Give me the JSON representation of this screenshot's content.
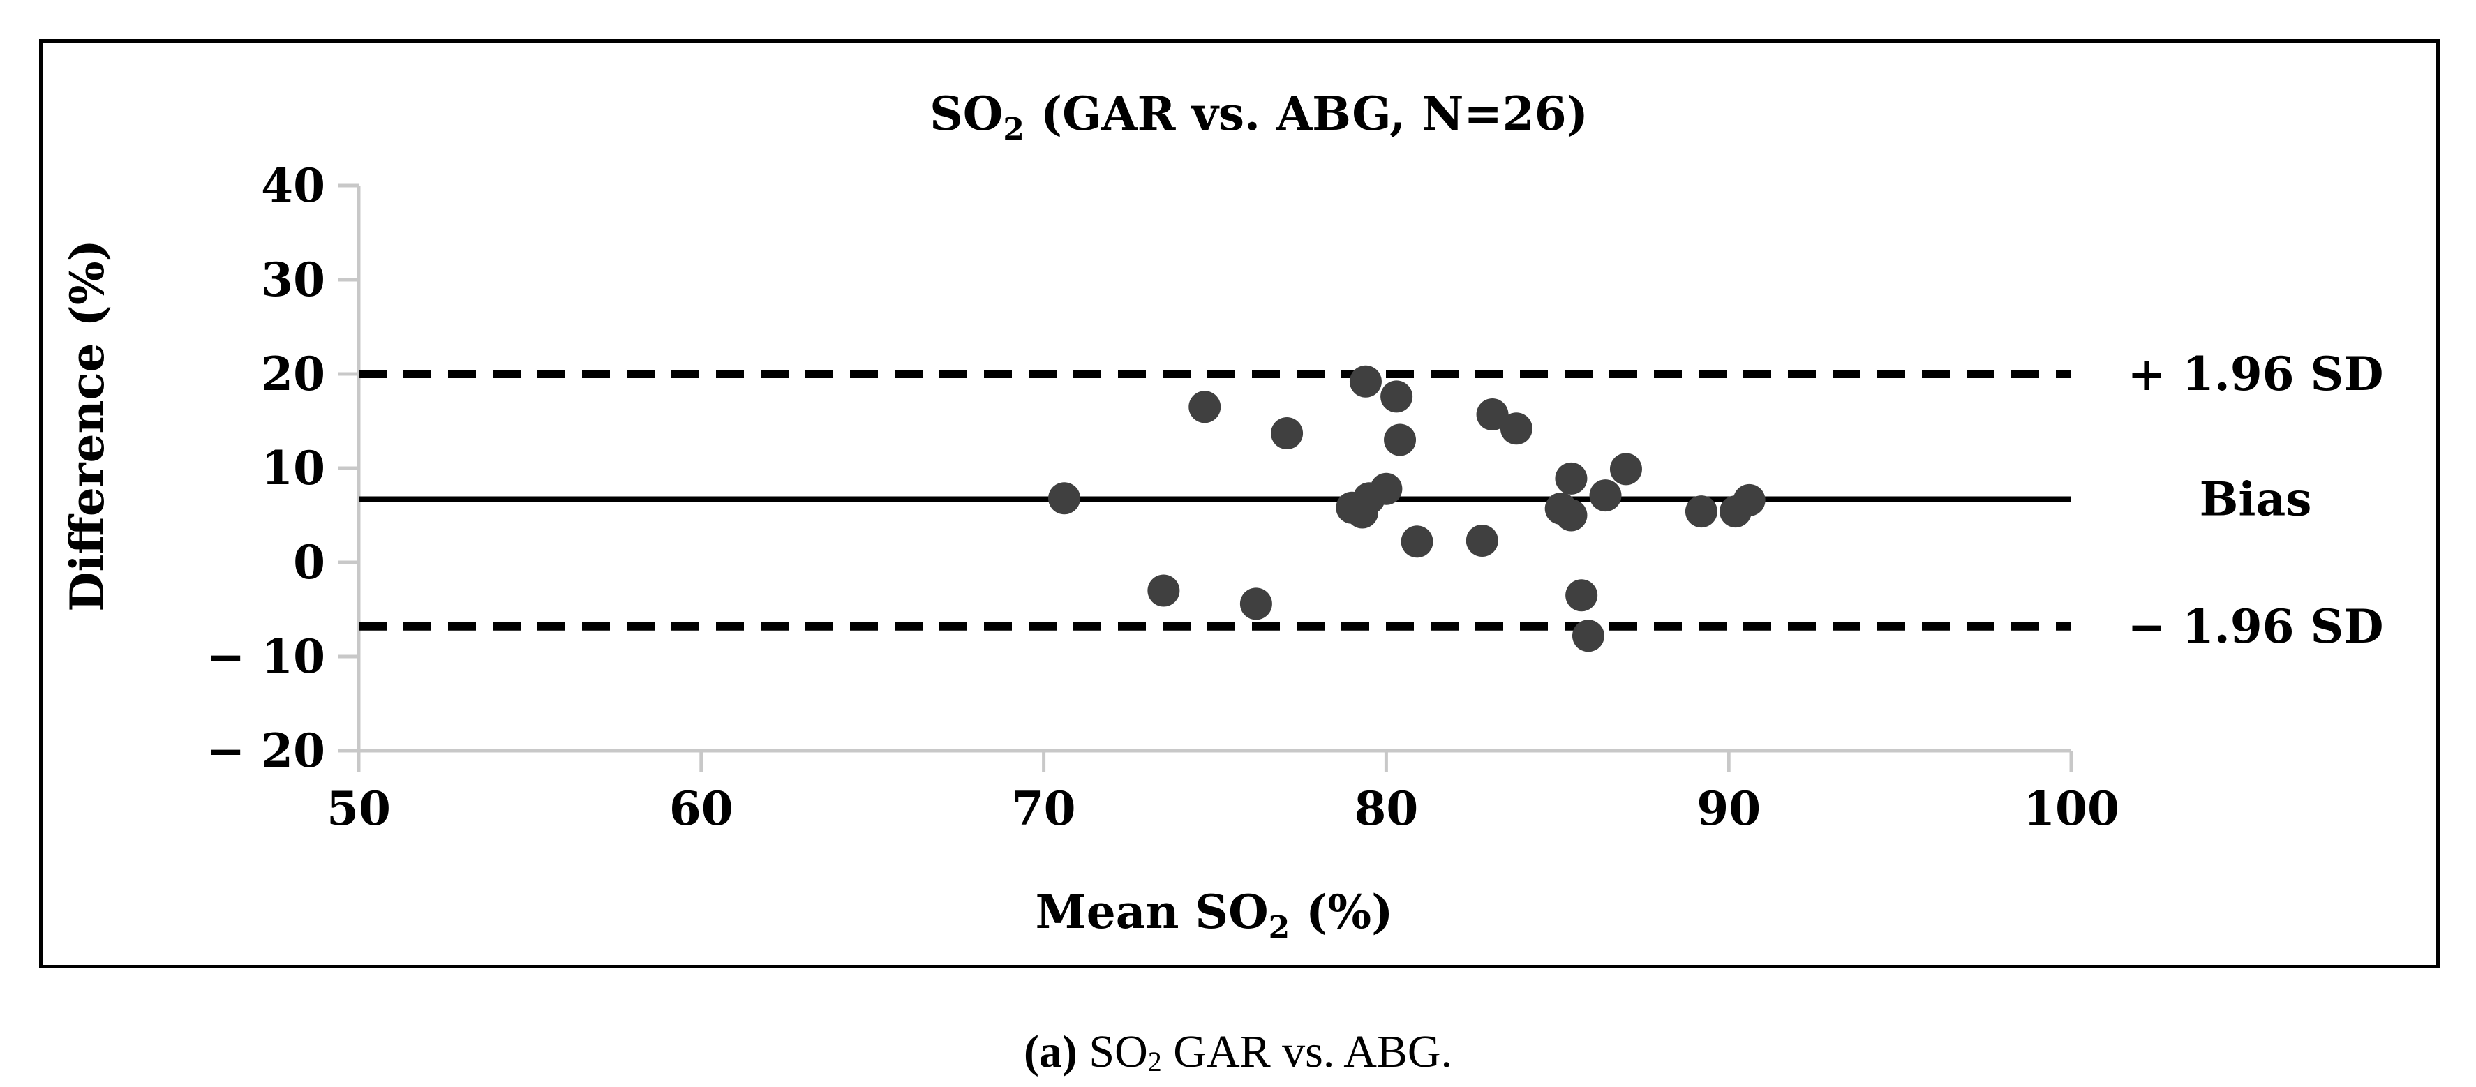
{
  "chart_data": {
    "type": "scatter",
    "title": {
      "main": "SO",
      "sub": "2",
      "rest": " (GAR vs. ABG, N=26)"
    },
    "xlabel": {
      "main": "Mean SO",
      "sub": "2",
      "rest": " (%)"
    },
    "ylabel": "Difference (%)",
    "xlim": [
      50,
      100
    ],
    "ylim": [
      -20,
      40
    ],
    "x_ticks": [
      {
        "value": 50,
        "label": "50"
      },
      {
        "value": 60,
        "label": "60"
      },
      {
        "value": 70,
        "label": "70"
      },
      {
        "value": 80,
        "label": "80"
      },
      {
        "value": 90,
        "label": "90"
      },
      {
        "value": 100,
        "label": "100"
      }
    ],
    "y_ticks": [
      {
        "value": 40,
        "label": "40"
      },
      {
        "value": 30,
        "label": "30"
      },
      {
        "value": 20,
        "label": "20"
      },
      {
        "value": 10,
        "label": "10"
      },
      {
        "value": 0,
        "label": "0"
      },
      {
        "value": -10,
        "label": "− 10"
      },
      {
        "value": -20,
        "label": "− 20"
      }
    ],
    "reference_lines": [
      {
        "name": "upper-loa",
        "value": 20,
        "style": "dashed",
        "label": "+ 1.96 SD"
      },
      {
        "name": "bias",
        "value": 6.7,
        "style": "solid",
        "label": "Bias"
      },
      {
        "name": "lower-loa",
        "value": -6.8,
        "style": "dashed",
        "label": "− 1.96 SD"
      }
    ],
    "points": [
      {
        "x": 70.6,
        "y": 6.8
      },
      {
        "x": 73.5,
        "y": -3.0
      },
      {
        "x": 74.7,
        "y": 16.5
      },
      {
        "x": 76.2,
        "y": -4.4
      },
      {
        "x": 77.1,
        "y": 13.7
      },
      {
        "x": 79.0,
        "y": 5.8
      },
      {
        "x": 79.3,
        "y": 5.3
      },
      {
        "x": 79.4,
        "y": 19.2
      },
      {
        "x": 79.5,
        "y": 6.8
      },
      {
        "x": 80.0,
        "y": 7.8
      },
      {
        "x": 80.3,
        "y": 17.6
      },
      {
        "x": 80.4,
        "y": 13.0
      },
      {
        "x": 80.9,
        "y": 2.2
      },
      {
        "x": 82.8,
        "y": 2.3
      },
      {
        "x": 83.1,
        "y": 15.7
      },
      {
        "x": 83.8,
        "y": 14.2
      },
      {
        "x": 85.1,
        "y": 5.7
      },
      {
        "x": 85.4,
        "y": 8.9
      },
      {
        "x": 85.4,
        "y": 5.0
      },
      {
        "x": 85.7,
        "y": -3.5
      },
      {
        "x": 85.9,
        "y": -7.8
      },
      {
        "x": 86.4,
        "y": 7.1
      },
      {
        "x": 87.0,
        "y": 9.9
      },
      {
        "x": 89.2,
        "y": 5.4
      },
      {
        "x": 90.2,
        "y": 5.4
      },
      {
        "x": 90.6,
        "y": 6.6
      }
    ]
  },
  "caption": {
    "label": "(a)",
    "text_main": " SO",
    "text_sub": "2",
    "text_rest": " GAR vs. ABG."
  }
}
